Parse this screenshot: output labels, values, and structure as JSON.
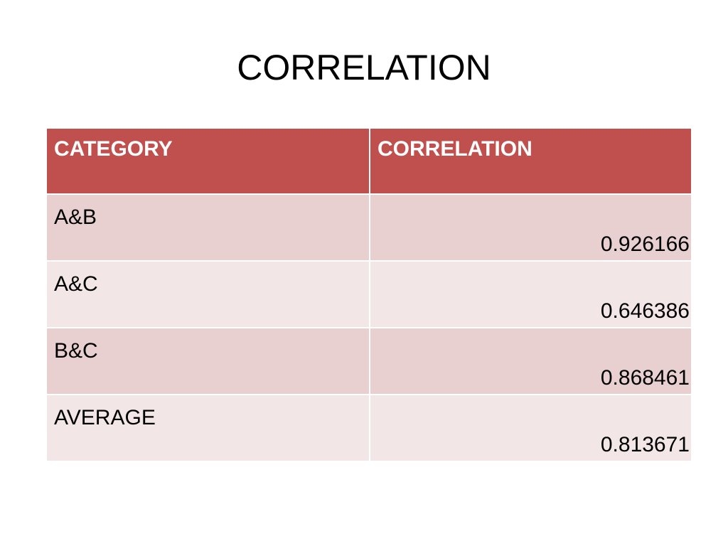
{
  "slide": {
    "title": "CORRELATION"
  },
  "table": {
    "headers": [
      "CATEGORY",
      "CORRELATION"
    ],
    "rows": [
      {
        "category": "A&B",
        "correlation": "0.926166"
      },
      {
        "category": "A&C",
        "correlation": "0.646386"
      },
      {
        "category": "B&C",
        "correlation": "0.868461"
      },
      {
        "category": "AVERAGE",
        "correlation": "0.813671"
      }
    ]
  },
  "colors": {
    "header_bg": "#c0504d",
    "row_band_dark": "#e8cfd0",
    "row_band_light": "#f3e6e6"
  }
}
